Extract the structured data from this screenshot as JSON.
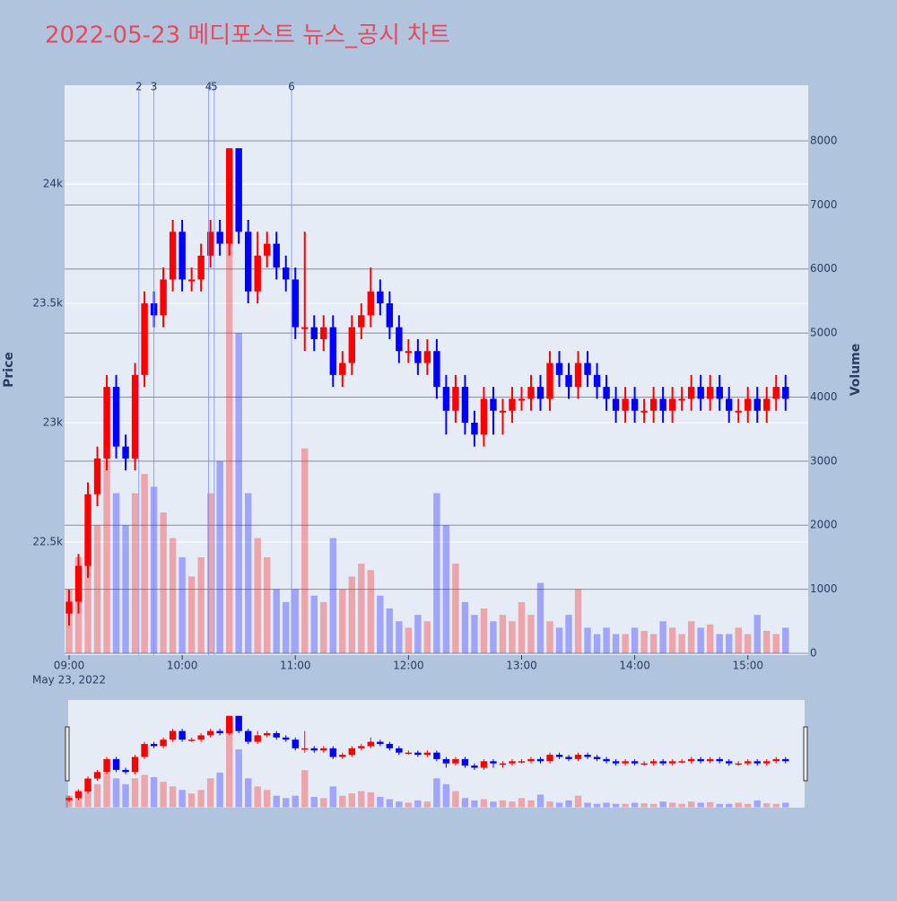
{
  "chart_data": {
    "type": "candlestick",
    "title": "2022-05-23 메디포스트 뉴스_공시 차트",
    "y_title": "Price",
    "y2_title": "Volume",
    "x_date": "May 23, 2022",
    "up_color": "#ff0000",
    "down_color": "#0000ff",
    "x": [
      "09:00",
      "09:05",
      "09:10",
      "09:15",
      "09:20",
      "09:25",
      "09:30",
      "09:35",
      "09:40",
      "09:45",
      "09:50",
      "09:55",
      "10:00",
      "10:05",
      "10:10",
      "10:15",
      "10:20",
      "10:25",
      "10:30",
      "10:35",
      "10:40",
      "10:45",
      "10:50",
      "10:55",
      "11:00",
      "11:05",
      "11:10",
      "11:15",
      "11:20",
      "11:25",
      "11:30",
      "11:35",
      "11:40",
      "11:45",
      "11:50",
      "11:55",
      "12:00",
      "12:05",
      "12:10",
      "12:15",
      "12:20",
      "12:25",
      "12:30",
      "12:35",
      "12:40",
      "12:45",
      "12:50",
      "12:55",
      "13:00",
      "13:05",
      "13:10",
      "13:15",
      "13:20",
      "13:25",
      "13:30",
      "13:35",
      "13:40",
      "13:45",
      "13:50",
      "13:55",
      "14:00",
      "14:05",
      "14:10",
      "14:15",
      "14:20",
      "14:25",
      "14:30",
      "14:35",
      "14:40",
      "14:45",
      "14:50",
      "14:55",
      "15:00",
      "15:05",
      "15:10",
      "15:15",
      "15:20"
    ],
    "open": [
      22200,
      22250,
      22400,
      22700,
      22850,
      23150,
      22900,
      22850,
      23200,
      23500,
      23450,
      23600,
      23800,
      23600,
      23600,
      23700,
      23800,
      23750,
      24150,
      23800,
      23550,
      23700,
      23750,
      23650,
      23600,
      23400,
      23400,
      23350,
      23400,
      23200,
      23250,
      23400,
      23450,
      23550,
      23500,
      23400,
      23300,
      23300,
      23250,
      23300,
      23150,
      23050,
      23150,
      23000,
      22950,
      23100,
      23050,
      23050,
      23100,
      23100,
      23150,
      23100,
      23250,
      23200,
      23150,
      23250,
      23200,
      23150,
      23100,
      23050,
      23100,
      23050,
      23050,
      23100,
      23050,
      23100,
      23100,
      23150,
      23100,
      23150,
      23100,
      23050,
      23050,
      23100,
      23050,
      23100,
      23150
    ],
    "high": [
      22300,
      22450,
      22750,
      22900,
      23200,
      23200,
      22950,
      23250,
      23550,
      23550,
      23650,
      23850,
      23850,
      23650,
      23750,
      23850,
      23850,
      24150,
      24150,
      23850,
      23800,
      23800,
      23800,
      23700,
      23650,
      23800,
      23450,
      23450,
      23450,
      23300,
      23450,
      23500,
      23650,
      23600,
      23550,
      23450,
      23350,
      23350,
      23350,
      23350,
      23200,
      23200,
      23200,
      23050,
      23150,
      23150,
      23100,
      23150,
      23150,
      23200,
      23200,
      23300,
      23300,
      23250,
      23300,
      23300,
      23250,
      23200,
      23150,
      23150,
      23150,
      23100,
      23150,
      23150,
      23150,
      23150,
      23200,
      23200,
      23200,
      23200,
      23150,
      23100,
      23150,
      23150,
      23150,
      23200,
      23200
    ],
    "low": [
      22150,
      22200,
      22350,
      22650,
      22800,
      22850,
      22800,
      22800,
      23150,
      23400,
      23400,
      23550,
      23550,
      23550,
      23550,
      23650,
      23700,
      23700,
      23750,
      23500,
      23500,
      23650,
      23600,
      23550,
      23350,
      23300,
      23300,
      23300,
      23150,
      23150,
      23200,
      23350,
      23400,
      23450,
      23350,
      23250,
      23250,
      23200,
      23200,
      23100,
      22950,
      23000,
      22950,
      22900,
      22900,
      22950,
      22950,
      23000,
      23050,
      23050,
      23050,
      23050,
      23150,
      23100,
      23100,
      23150,
      23100,
      23050,
      23000,
      23000,
      23000,
      23000,
      23000,
      23000,
      23000,
      23050,
      23050,
      23050,
      23050,
      23050,
      23000,
      23000,
      23000,
      23000,
      23000,
      23050,
      23050
    ],
    "close": [
      22250,
      22400,
      22700,
      22850,
      23150,
      22900,
      22850,
      23200,
      23500,
      23450,
      23600,
      23800,
      23600,
      23600,
      23700,
      23800,
      23750,
      24150,
      23800,
      23550,
      23700,
      23750,
      23650,
      23600,
      23400,
      23400,
      23350,
      23400,
      23200,
      23250,
      23400,
      23450,
      23550,
      23500,
      23400,
      23300,
      23300,
      23250,
      23300,
      23150,
      23050,
      23150,
      23000,
      22950,
      23100,
      23050,
      23050,
      23100,
      23100,
      23150,
      23100,
      23250,
      23200,
      23150,
      23250,
      23200,
      23150,
      23100,
      23050,
      23100,
      23050,
      23050,
      23100,
      23050,
      23100,
      23100,
      23150,
      23100,
      23150,
      23100,
      23050,
      23050,
      23100,
      23050,
      23100,
      23150,
      23100
    ],
    "volume": [
      1000,
      1500,
      1800,
      2000,
      3000,
      2500,
      2000,
      2500,
      2800,
      2600,
      2200,
      1800,
      1500,
      1200,
      1500,
      2500,
      3000,
      7500,
      5000,
      2500,
      1800,
      1500,
      1000,
      800,
      1000,
      3200,
      900,
      800,
      1800,
      1000,
      1200,
      1400,
      1300,
      900,
      700,
      500,
      400,
      600,
      500,
      2500,
      2000,
      1400,
      800,
      600,
      700,
      500,
      600,
      500,
      800,
      600,
      1100,
      500,
      400,
      600,
      1000,
      400,
      300,
      400,
      300,
      300,
      400,
      350,
      300,
      500,
      400,
      300,
      500,
      400,
      450,
      300,
      300,
      400,
      300,
      600,
      350,
      300,
      400
    ],
    "events": [
      {
        "x": "09:37",
        "label": "2"
      },
      {
        "x": "09:45",
        "label": "3"
      },
      {
        "x": "10:14",
        "label": "4"
      },
      {
        "x": "10:17",
        "label": "5"
      },
      {
        "x": "10:58",
        "label": "6"
      }
    ],
    "xlim": [
      "09:00",
      "15:32"
    ],
    "xticks": [
      "09:00",
      "10:00",
      "11:00",
      "12:00",
      "13:00",
      "14:00",
      "15:00"
    ],
    "ylim": [
      22026,
      24414
    ],
    "yticks": [
      {
        "value": 22500,
        "label": "22.5k"
      },
      {
        "value": 23000,
        "label": "23k"
      },
      {
        "value": 23500,
        "label": "23.5k"
      },
      {
        "value": 24000,
        "label": "24k"
      }
    ],
    "y2lim": [
      -28,
      8868
    ],
    "y2ticks": [
      0,
      1000,
      2000,
      3000,
      4000,
      5000,
      6000,
      7000,
      8000
    ],
    "grid": true,
    "rangeslider": true
  }
}
